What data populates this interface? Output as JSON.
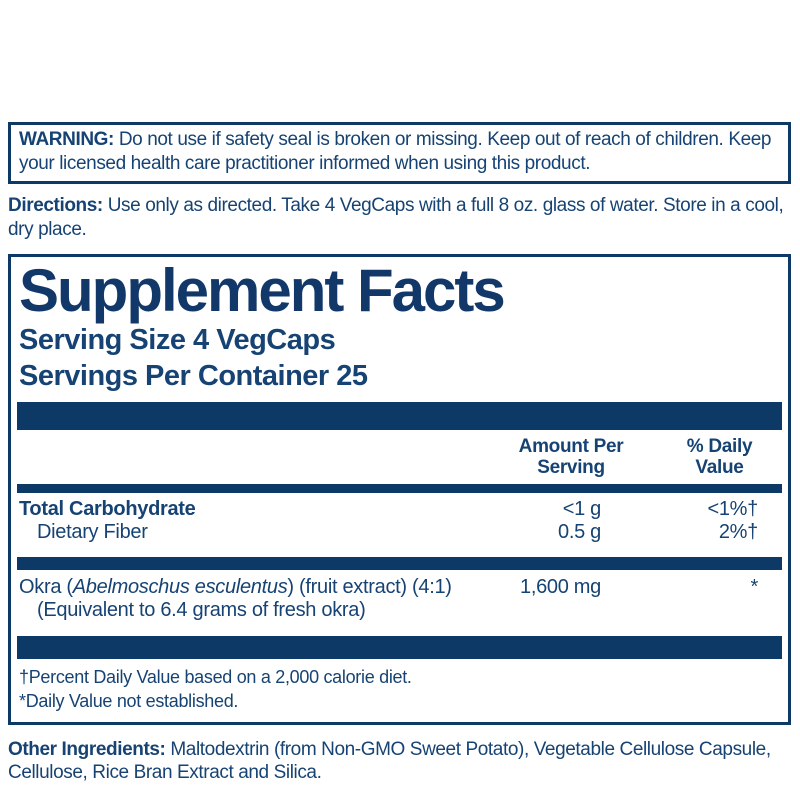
{
  "colors": {
    "navy": "#0d3966",
    "text": "#164373"
  },
  "warning": {
    "label": "WARNING:",
    "text": "Do not use if safety seal is broken or missing. Keep out of reach of children. Keep your licensed health care practitioner informed when using this product."
  },
  "directions": {
    "label": "Directions:",
    "text": "Use only as directed. Take 4 VegCaps with a full 8 oz. glass of water. Store in a cool, dry place."
  },
  "panel": {
    "title": "Supplement Facts",
    "serving_size": "Serving Size 4 VegCaps",
    "servings_per_container": "Servings Per Container 25",
    "columns": {
      "amount": "Amount Per\nServing",
      "dv": "% Daily\nValue"
    },
    "rows": [
      {
        "name": "Total Carbohydrate",
        "amount": "<1 g",
        "dv": "<1%†"
      },
      {
        "name": "Dietary Fiber",
        "amount": "0.5 g",
        "dv": "2%†"
      }
    ],
    "extract_row": {
      "name_prefix": "Okra (",
      "name_italic": "Abelmoschus esculentus",
      "name_suffix": ") (fruit extract) (4:1) (Equivalent to 6.4 grams of fresh okra)",
      "amount": "1,600 mg",
      "dv": "*"
    },
    "footnotes": [
      "†Percent Daily Value based on a 2,000 calorie diet.",
      "*Daily Value not established."
    ]
  },
  "other_ingredients": {
    "label": "Other Ingredients:",
    "text": "Maltodextrin (from Non-GMO Sweet Potato), Vegetable Cellulose Capsule, Cellulose, Rice Bran Extract and Silica."
  }
}
